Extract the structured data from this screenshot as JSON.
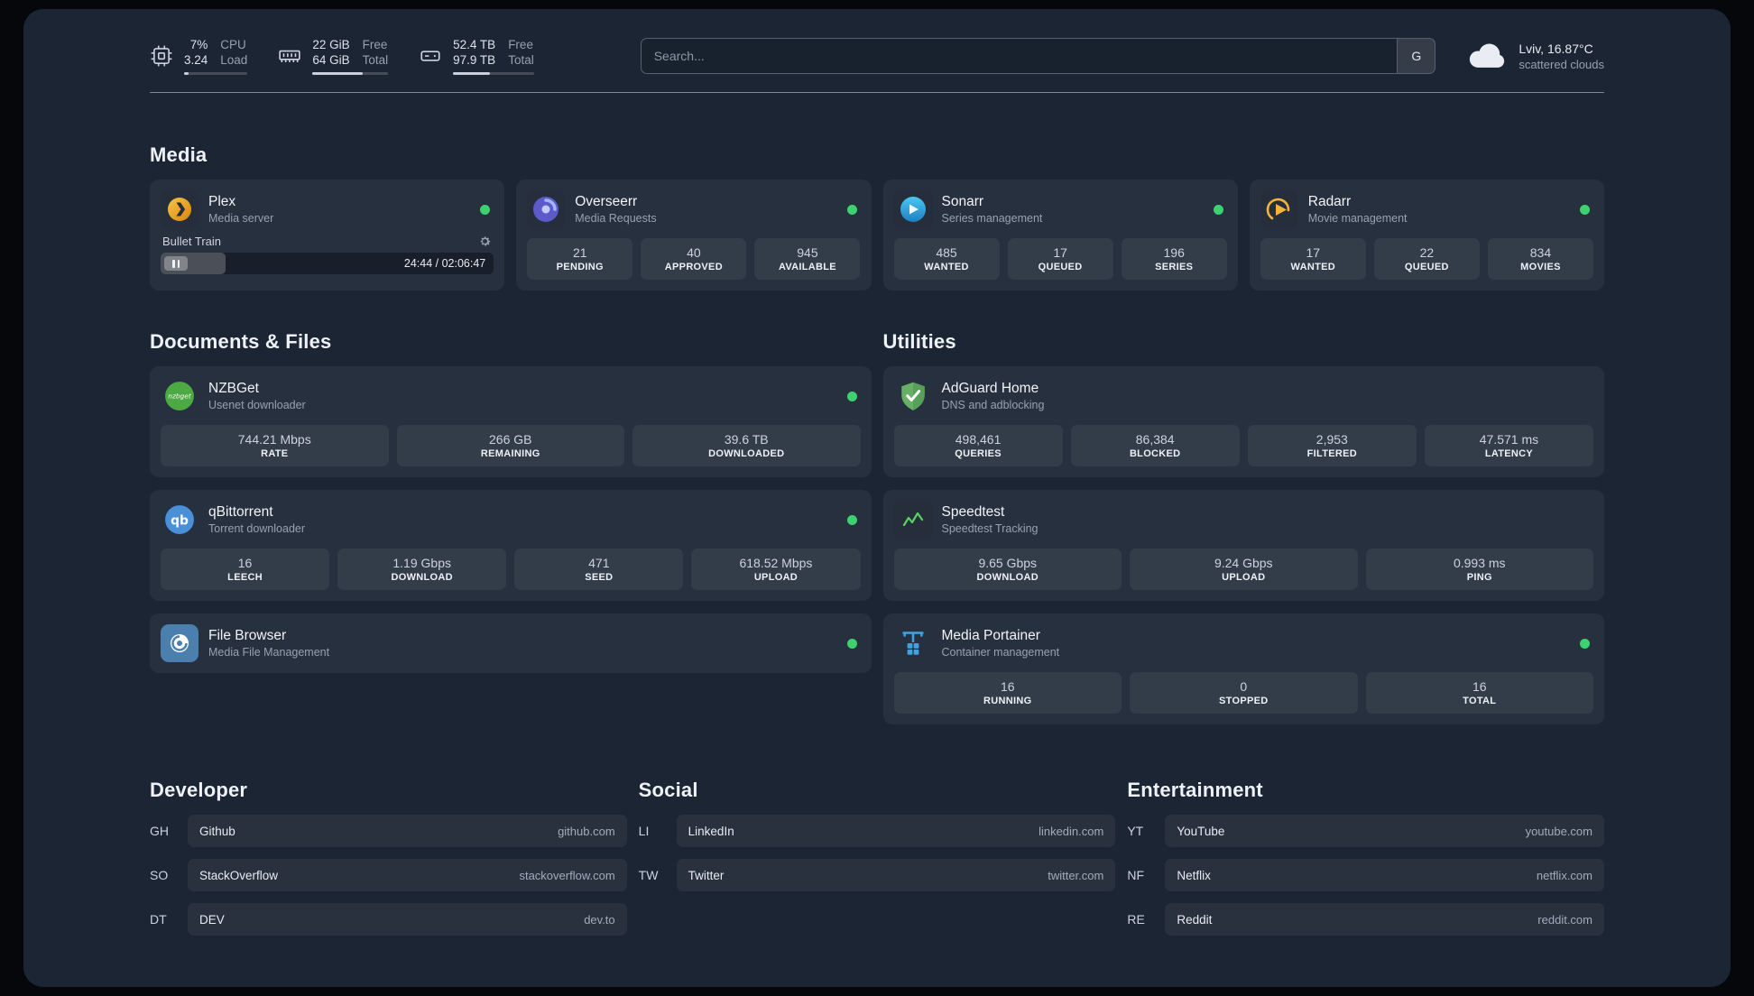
{
  "colors": {
    "status_ok": "#3ed170",
    "accent_plex": "#e5a00d",
    "accent_overseerr": "#5d5acb",
    "accent_sonarr": "#35c5f4",
    "accent_radarr": "#f2b53a",
    "accent_nzbget": "#4da944",
    "accent_qbittorrent": "#4a90d9",
    "accent_filebrowser": "#4a7fae",
    "accent_adguard": "#67b167",
    "accent_speedtest": "#56d364",
    "accent_portainer": "#41a3dd"
  },
  "topbar": {
    "cpu": {
      "icon": "cpu-icon",
      "value_top": "7%",
      "value_bottom": "3.24",
      "label_top": "CPU",
      "label_bottom": "Load",
      "bar_percent": 7
    },
    "memory": {
      "icon": "memory-icon",
      "value_top": "22 GiB",
      "value_bottom": "64 GiB",
      "label_top": "Free",
      "label_bottom": "Total",
      "bar_percent": 66
    },
    "disk": {
      "icon": "disk-icon",
      "value_top": "52.4 TB",
      "value_bottom": "97.9 TB",
      "label_top": "Free",
      "label_bottom": "Total",
      "bar_percent": 46
    },
    "search": {
      "placeholder": "Search...",
      "provider_button": "G"
    },
    "weather": {
      "icon": "cloud-icon",
      "location": "Lviv, 16.87°C",
      "condition": "scattered clouds"
    }
  },
  "media": {
    "title": "Media",
    "cards": [
      {
        "icon": "plex-icon",
        "title": "Plex",
        "subtitle": "Media server",
        "status": "online",
        "player": {
          "track": "Bullet Train",
          "time": "24:44 / 02:06:47",
          "progress_percent": 19.6
        }
      },
      {
        "icon": "overseerr-icon",
        "title": "Overseerr",
        "subtitle": "Media Requests",
        "status": "online",
        "stats": [
          {
            "value": "21",
            "label": "PENDING"
          },
          {
            "value": "40",
            "label": "APPROVED"
          },
          {
            "value": "945",
            "label": "AVAILABLE"
          }
        ]
      },
      {
        "icon": "sonarr-icon",
        "title": "Sonarr",
        "subtitle": "Series management",
        "status": "online",
        "stats": [
          {
            "value": "485",
            "label": "WANTED"
          },
          {
            "value": "17",
            "label": "QUEUED"
          },
          {
            "value": "196",
            "label": "SERIES"
          }
        ]
      },
      {
        "icon": "radarr-icon",
        "title": "Radarr",
        "subtitle": "Movie management",
        "status": "online",
        "stats": [
          {
            "value": "17",
            "label": "WANTED"
          },
          {
            "value": "22",
            "label": "QUEUED"
          },
          {
            "value": "834",
            "label": "MOVIES"
          }
        ]
      }
    ]
  },
  "documents": {
    "title": "Documents & Files",
    "cards": [
      {
        "icon": "nzbget-icon",
        "title": "NZBGet",
        "subtitle": "Usenet downloader",
        "status": "online",
        "stats": [
          {
            "value": "744.21 Mbps",
            "label": "RATE"
          },
          {
            "value": "266 GB",
            "label": "REMAINING"
          },
          {
            "value": "39.6 TB",
            "label": "DOWNLOADED"
          }
        ]
      },
      {
        "icon": "qbittorrent-icon",
        "title": "qBittorrent",
        "subtitle": "Torrent downloader",
        "status": "online",
        "stats": [
          {
            "value": "16",
            "label": "LEECH"
          },
          {
            "value": "1.19 Gbps",
            "label": "DOWNLOAD"
          },
          {
            "value": "471",
            "label": "SEED"
          },
          {
            "value": "618.52 Mbps",
            "label": "UPLOAD"
          }
        ]
      },
      {
        "icon": "filebrowser-icon",
        "title": "File Browser",
        "subtitle": "Media File Management",
        "status": "online",
        "stats": []
      }
    ]
  },
  "utilities": {
    "title": "Utilities",
    "cards": [
      {
        "icon": "adguard-icon",
        "title": "AdGuard Home",
        "subtitle": "DNS and adblocking",
        "stats": [
          {
            "value": "498,461",
            "label": "QUERIES"
          },
          {
            "value": "86,384",
            "label": "BLOCKED"
          },
          {
            "value": "2,953",
            "label": "FILTERED"
          },
          {
            "value": "47.571 ms",
            "label": "LATENCY"
          }
        ]
      },
      {
        "icon": "speedtest-icon",
        "title": "Speedtest",
        "subtitle": "Speedtest Tracking",
        "stats": [
          {
            "value": "9.65 Gbps",
            "label": "DOWNLOAD"
          },
          {
            "value": "9.24 Gbps",
            "label": "UPLOAD"
          },
          {
            "value": "0.993 ms",
            "label": "PING"
          }
        ]
      },
      {
        "icon": "portainer-icon",
        "title": "Media Portainer",
        "subtitle": "Container management",
        "status": "online",
        "stats": [
          {
            "value": "16",
            "label": "RUNNING"
          },
          {
            "value": "0",
            "label": "STOPPED"
          },
          {
            "value": "16",
            "label": "TOTAL"
          }
        ]
      }
    ]
  },
  "bookmarks": {
    "groups": [
      {
        "title": "Developer",
        "items": [
          {
            "abbr": "GH",
            "name": "Github",
            "domain": "github.com"
          },
          {
            "abbr": "SO",
            "name": "StackOverflow",
            "domain": "stackoverflow.com"
          },
          {
            "abbr": "DT",
            "name": "DEV",
            "domain": "dev.to"
          }
        ]
      },
      {
        "title": "Social",
        "items": [
          {
            "abbr": "LI",
            "name": "LinkedIn",
            "domain": "linkedin.com"
          },
          {
            "abbr": "TW",
            "name": "Twitter",
            "domain": "twitter.com"
          }
        ]
      },
      {
        "title": "Entertainment",
        "items": [
          {
            "abbr": "YT",
            "name": "YouTube",
            "domain": "youtube.com"
          },
          {
            "abbr": "NF",
            "name": "Netflix",
            "domain": "netflix.com"
          },
          {
            "abbr": "RE",
            "name": "Reddit",
            "domain": "reddit.com"
          }
        ]
      }
    ]
  }
}
